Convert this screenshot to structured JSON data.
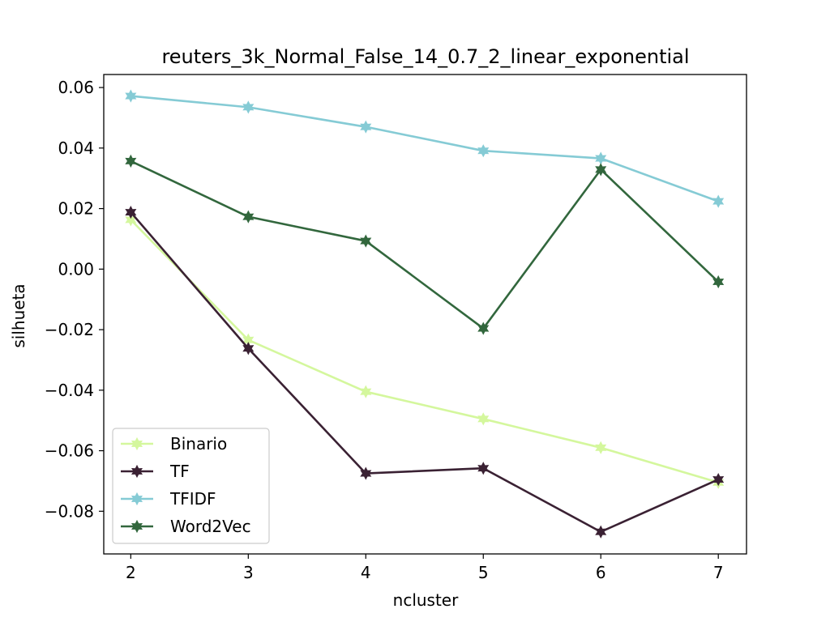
{
  "chart_data": {
    "type": "line",
    "title": "reuters_3k_Normal_False_14_0.7_2_linear_exponential",
    "xlabel": "ncluster",
    "ylabel": "silhueta",
    "x": [
      2,
      3,
      4,
      5,
      6,
      7
    ],
    "xlim": [
      1.77,
      7.24
    ],
    "ylim": [
      -0.0941,
      0.0643
    ],
    "xticks": [
      "2",
      "3",
      "4",
      "5",
      "6",
      "7"
    ],
    "yticks": [
      {
        "value": 0.06,
        "label": "0.06"
      },
      {
        "value": 0.04,
        "label": "0.04"
      },
      {
        "value": 0.02,
        "label": "0.02"
      },
      {
        "value": 0.0,
        "label": "0.00"
      },
      {
        "value": -0.02,
        "label": "−0.02"
      },
      {
        "value": -0.04,
        "label": "−0.04"
      },
      {
        "value": -0.06,
        "label": "−0.06"
      },
      {
        "value": -0.08,
        "label": "−0.08"
      }
    ],
    "grid": false,
    "legend_position": "lower-left",
    "marker": "star",
    "series": [
      {
        "name": "Binario",
        "color": "#d4f79d",
        "values": [
          0.0163,
          -0.0234,
          -0.0405,
          -0.0495,
          -0.059,
          -0.0705
        ]
      },
      {
        "name": "TF",
        "color": "#3a2133",
        "values": [
          0.0188,
          -0.0262,
          -0.0675,
          -0.0658,
          -0.0868,
          -0.0695
        ]
      },
      {
        "name": "TFIDF",
        "color": "#85cbd5",
        "values": [
          0.0572,
          0.0535,
          0.047,
          0.0391,
          0.0366,
          0.0224
        ]
      },
      {
        "name": "Word2Vec",
        "color": "#32673d",
        "values": [
          0.0357,
          0.0173,
          0.0093,
          -0.0196,
          0.0329,
          -0.0042
        ]
      }
    ]
  }
}
